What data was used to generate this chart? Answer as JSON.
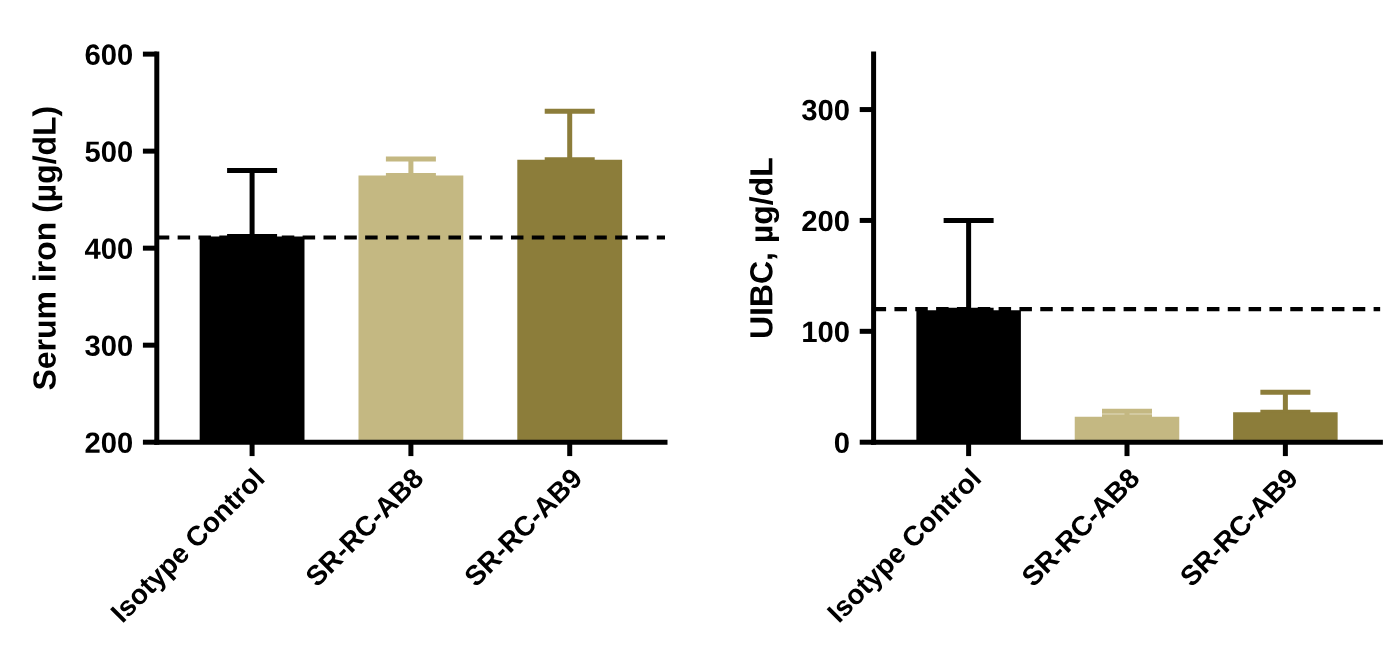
{
  "chart_data": [
    {
      "type": "bar",
      "ylabel": "Serum iron (µg/dL)",
      "categories": [
        "Isotype Control",
        "SR-RC-AB8",
        "SR-RC-AB9"
      ],
      "values": [
        412,
        475,
        491
      ],
      "colors": [
        "#000000",
        "#c4b882",
        "#8c7d3a"
      ],
      "errors": [
        [
          412,
          480
        ],
        [
          475,
          492
        ],
        [
          491,
          541
        ]
      ],
      "ylim": [
        200,
        600
      ],
      "yticks": [
        200,
        300,
        400,
        500,
        600
      ],
      "grid": false,
      "ref_lines": [
        {
          "axis": "y",
          "value": 411,
          "color": "#000000",
          "line_style": "dashed"
        }
      ]
    },
    {
      "type": "bar",
      "ylabel": "UIBC, µg/dL",
      "categories": [
        "Isotype Control",
        "SR-RC-AB8",
        "SR-RC-AB9"
      ],
      "values": [
        119,
        23,
        27
      ],
      "colors": [
        "#000000",
        "#c4b882",
        "#8c7d3a"
      ],
      "errors": [
        [
          119,
          200
        ],
        [
          23,
          28
        ],
        [
          27,
          45
        ]
      ],
      "ylim": [
        0,
        350
      ],
      "yticks": [
        0,
        100,
        200,
        300
      ],
      "grid": false,
      "ref_lines": [
        {
          "axis": "y",
          "value": 120,
          "color": "#000000",
          "line_style": "dashed"
        }
      ]
    }
  ]
}
